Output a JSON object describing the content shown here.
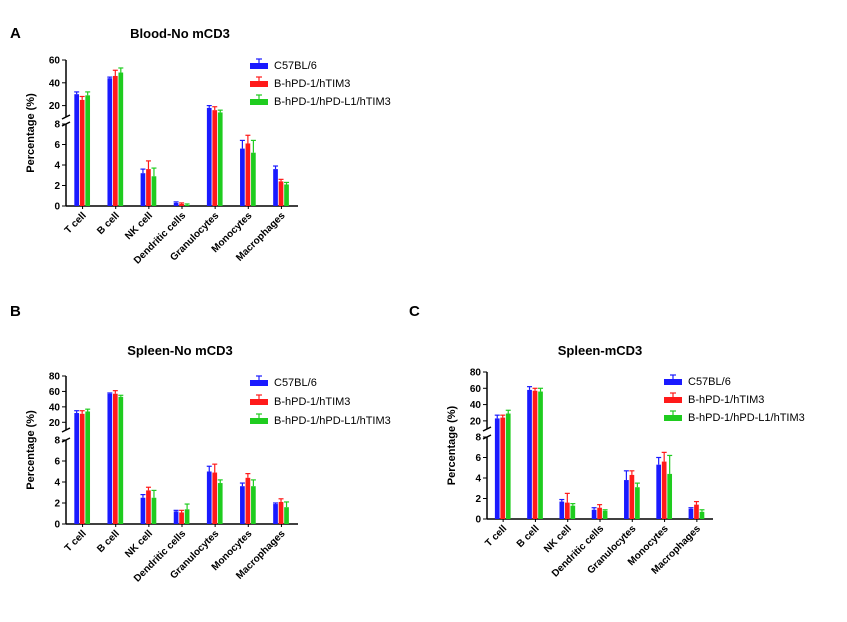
{
  "colors": {
    "series": [
      "#1a1aff",
      "#ff1a1a",
      "#1fcc1f"
    ],
    "axis": "#000000"
  },
  "chart_data": [
    {
      "panel": "A",
      "type": "bar",
      "title": "Blood-No mCD3",
      "ylabel": "Percentage (%)",
      "axis_break": {
        "lower": [
          0,
          8
        ],
        "upper": [
          10,
          60
        ]
      },
      "y_ticks_lower": [
        0,
        2,
        4,
        6,
        8
      ],
      "y_ticks_upper": [
        20,
        40,
        60
      ],
      "categories": [
        "T cell",
        "B cell",
        "NK cell",
        "Dendritic cells",
        "Granulocytes",
        "Monocytes",
        "Macrophages"
      ],
      "legend_position": "top-right",
      "series": [
        {
          "name": "C57BL/6",
          "values": [
            30,
            44,
            3.2,
            0.3,
            18,
            5.6,
            3.6
          ],
          "errors": [
            2,
            1,
            0.4,
            0.1,
            2,
            0.8,
            0.3
          ]
        },
        {
          "name": "B-hPD-1/hTIM3",
          "values": [
            25,
            46,
            3.6,
            0.2,
            16,
            6.1,
            2.4
          ],
          "errors": [
            3,
            5,
            0.8,
            0.1,
            3,
            0.8,
            0.2
          ]
        },
        {
          "name": "B-hPD-1/hPD-L1/hTIM3",
          "values": [
            29,
            49,
            2.9,
            0.1,
            14,
            5.2,
            2.1
          ],
          "errors": [
            3,
            4,
            0.8,
            0.1,
            2,
            1.2,
            0.2
          ]
        }
      ]
    },
    {
      "panel": "B",
      "type": "bar",
      "title": "Spleen-No mCD3",
      "ylabel": "Percentage (%)",
      "axis_break": {
        "lower": [
          0,
          8
        ],
        "upper": [
          10,
          80
        ]
      },
      "y_ticks_lower": [
        0,
        2,
        4,
        6,
        8
      ],
      "y_ticks_upper": [
        20,
        40,
        60,
        80
      ],
      "categories": [
        "T cell",
        "B cell",
        "NK cell",
        "Dendritic cells",
        "Granulocytes",
        "Monocytes",
        "Macrophages"
      ],
      "legend_position": "top-right",
      "series": [
        {
          "name": "C57BL/6",
          "values": [
            32,
            57,
            2.5,
            1.2,
            5.0,
            3.6,
            1.9
          ],
          "errors": [
            3,
            1,
            0.3,
            0.1,
            0.5,
            0.3,
            0.1
          ]
        },
        {
          "name": "B-hPD-1/hTIM3",
          "values": [
            31,
            57,
            3.2,
            1.1,
            4.9,
            4.4,
            2.1
          ],
          "errors": [
            4,
            4,
            0.3,
            0.2,
            0.8,
            0.4,
            0.3
          ]
        },
        {
          "name": "B-hPD-1/hPD-L1/hTIM3",
          "values": [
            34,
            53,
            2.5,
            1.4,
            3.9,
            3.6,
            1.6
          ],
          "errors": [
            3,
            2,
            0.7,
            0.5,
            0.3,
            0.6,
            0.5
          ]
        }
      ]
    },
    {
      "panel": "C",
      "type": "bar",
      "title": "Spleen-mCD3",
      "ylabel": "Percentage (%)",
      "axis_break": {
        "lower": [
          0,
          8
        ],
        "upper": [
          10,
          80
        ]
      },
      "y_ticks_lower": [
        0,
        2,
        4,
        6,
        8
      ],
      "y_ticks_upper": [
        20,
        40,
        60,
        80
      ],
      "categories": [
        "T cell",
        "B cell",
        "NK cell",
        "Dendritic cells",
        "Granulocytes",
        "Monocytes",
        "Macrophages"
      ],
      "legend_position": "top-right",
      "series": [
        {
          "name": "C57BL/6",
          "values": [
            23,
            58,
            1.7,
            0.9,
            3.8,
            5.3,
            1.0
          ],
          "errors": [
            4,
            4,
            0.2,
            0.2,
            0.9,
            0.7,
            0.1
          ]
        },
        {
          "name": "B-hPD-1/hTIM3",
          "values": [
            24,
            57,
            1.6,
            1.1,
            4.3,
            5.6,
            1.4
          ],
          "errors": [
            3,
            3,
            0.9,
            0.3,
            0.4,
            0.9,
            0.3
          ]
        },
        {
          "name": "B-hPD-1/hPD-L1/hTIM3",
          "values": [
            29,
            56,
            1.3,
            0.8,
            3.1,
            4.4,
            0.7
          ],
          "errors": [
            4,
            4,
            0.2,
            0.1,
            0.4,
            1.8,
            0.2
          ]
        }
      ]
    }
  ]
}
